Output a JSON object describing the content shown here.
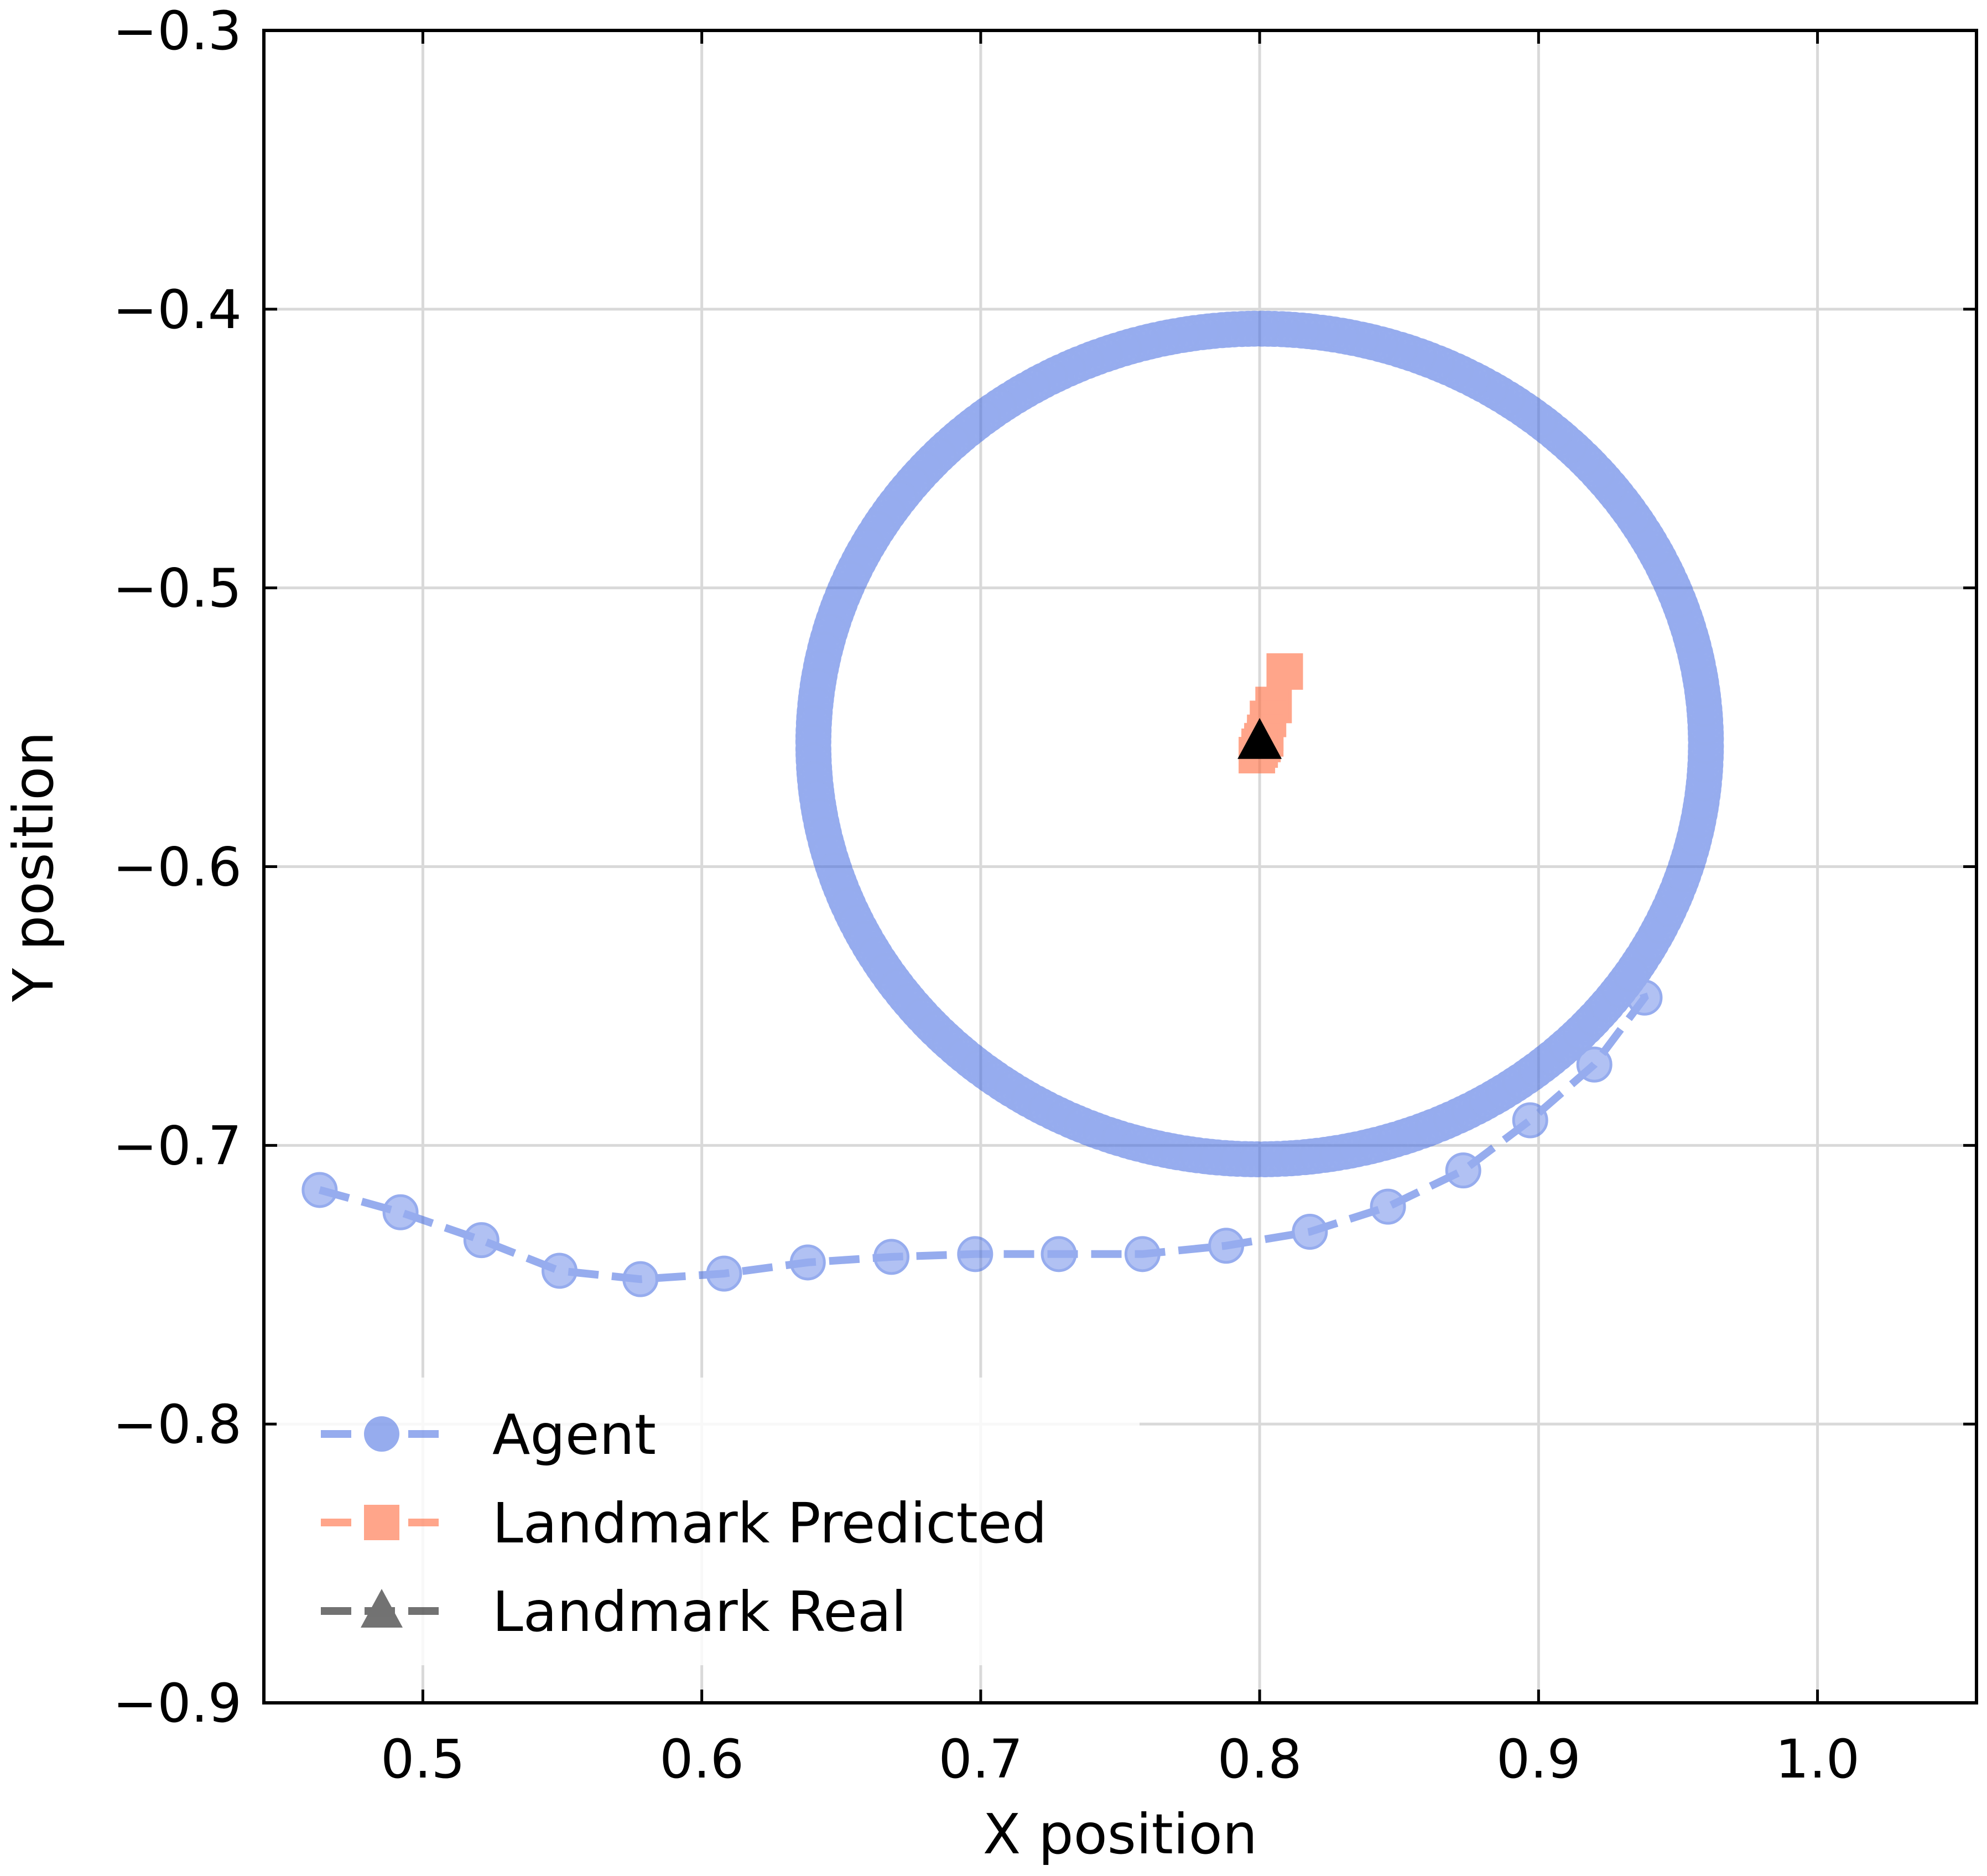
{
  "chart_data": {
    "type": "scatter",
    "title": "",
    "xlabel": "X position",
    "ylabel": "Y position",
    "xlim": [
      0.443,
      1.057
    ],
    "ylim": [
      -0.9,
      -0.3
    ],
    "xticks": [
      0.5,
      0.6,
      0.7,
      0.8,
      0.9,
      1.0
    ],
    "xtick_labels": [
      "0.5",
      "0.6",
      "0.7",
      "0.8",
      "0.9",
      "1.0"
    ],
    "yticks": [
      -0.3,
      -0.4,
      -0.5,
      -0.6,
      -0.7,
      -0.8,
      -0.9
    ],
    "ytick_labels": [
      "−0.3",
      "−0.4",
      "−0.5",
      "−0.6",
      "−0.7",
      "−0.8",
      "−0.9"
    ],
    "grid": true,
    "legend_position": "lower-left",
    "series": [
      {
        "name": "Agent",
        "color": "#4169e1",
        "marker": "circle",
        "linestyle": "dashed",
        "alpha": 0.55,
        "approach_path": [
          [
            0.463,
            -0.716
          ],
          [
            0.492,
            -0.724
          ],
          [
            0.521,
            -0.734
          ],
          [
            0.549,
            -0.745
          ],
          [
            0.578,
            -0.748
          ],
          [
            0.608,
            -0.746
          ],
          [
            0.638,
            -0.742
          ],
          [
            0.668,
            -0.74
          ],
          [
            0.698,
            -0.739
          ],
          [
            0.728,
            -0.739
          ],
          [
            0.758,
            -0.739
          ],
          [
            0.788,
            -0.736
          ],
          [
            0.818,
            -0.731
          ],
          [
            0.846,
            -0.722
          ],
          [
            0.873,
            -0.709
          ],
          [
            0.897,
            -0.691
          ],
          [
            0.92,
            -0.671
          ],
          [
            0.938,
            -0.647
          ]
        ],
        "orbit": {
          "center": [
            0.8,
            -0.556
          ],
          "radius_x": 0.16,
          "radius_y": 0.149,
          "points": 140,
          "laps": 3
        }
      },
      {
        "name": "Landmark Predicted",
        "color": "#ff6a3d",
        "marker": "square",
        "linestyle": "dashed",
        "alpha": 0.6,
        "points": [
          [
            0.809,
            -0.53
          ],
          [
            0.805,
            -0.542
          ],
          [
            0.803,
            -0.547
          ],
          [
            0.802,
            -0.552
          ],
          [
            0.801,
            -0.555
          ],
          [
            0.8,
            -0.558
          ],
          [
            0.799,
            -0.56
          ],
          [
            0.8,
            -0.557
          ],
          [
            0.802,
            -0.554
          ],
          [
            0.801,
            -0.556
          ]
        ]
      },
      {
        "name": "Landmark Real",
        "color": "#000000",
        "marker": "triangle",
        "linestyle": "dashed",
        "alpha": 1.0,
        "points": [
          [
            0.8,
            -0.555
          ]
        ]
      }
    ]
  }
}
